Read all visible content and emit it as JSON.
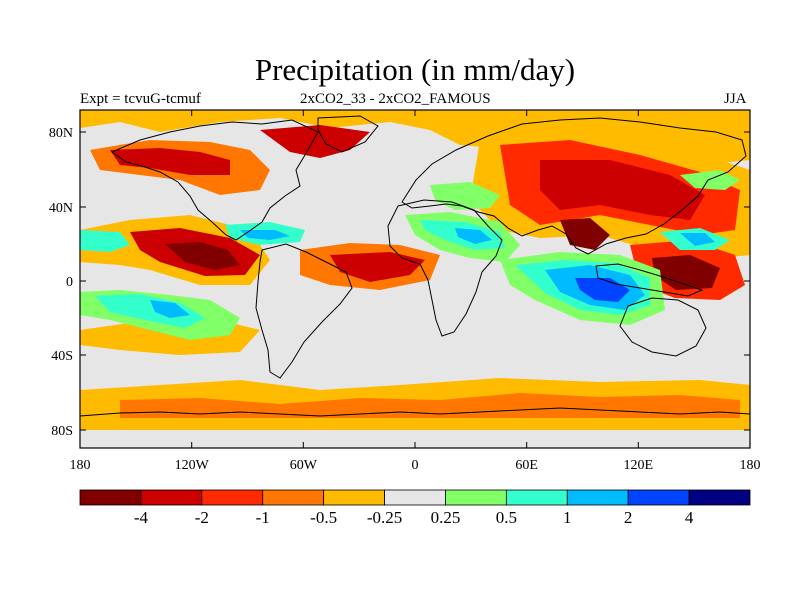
{
  "title": "Precipitation (in mm/day)",
  "left_label": "Expt = tcvuG-tcmuf",
  "center_label": "2xCO2_33 - 2xCO2_FAMOUS",
  "right_label": "JJA",
  "map": {
    "lat_ticks": [
      "80N",
      "40N",
      "0",
      "40S",
      "80S"
    ],
    "lon_ticks": [
      "180",
      "120W",
      "60W",
      "0",
      "60E",
      "120E",
      "180"
    ],
    "field": "precipitation difference",
    "units": "mm/day",
    "colors": {
      "background_neutral": "#e6e6e6",
      "coastline": "#000000"
    }
  },
  "colorbar": {
    "boundaries": [
      "-4",
      "-2",
      "-1",
      "-0.5",
      "-0.25",
      "0.25",
      "0.5",
      "1",
      "2",
      "4"
    ],
    "colors": [
      "#800000",
      "#cc0000",
      "#ff2a00",
      "#ff7700",
      "#ffbb00",
      "#e6e6e6",
      "#80ff66",
      "#33ffcc",
      "#00bbff",
      "#0044ff",
      "#000080"
    ]
  }
}
